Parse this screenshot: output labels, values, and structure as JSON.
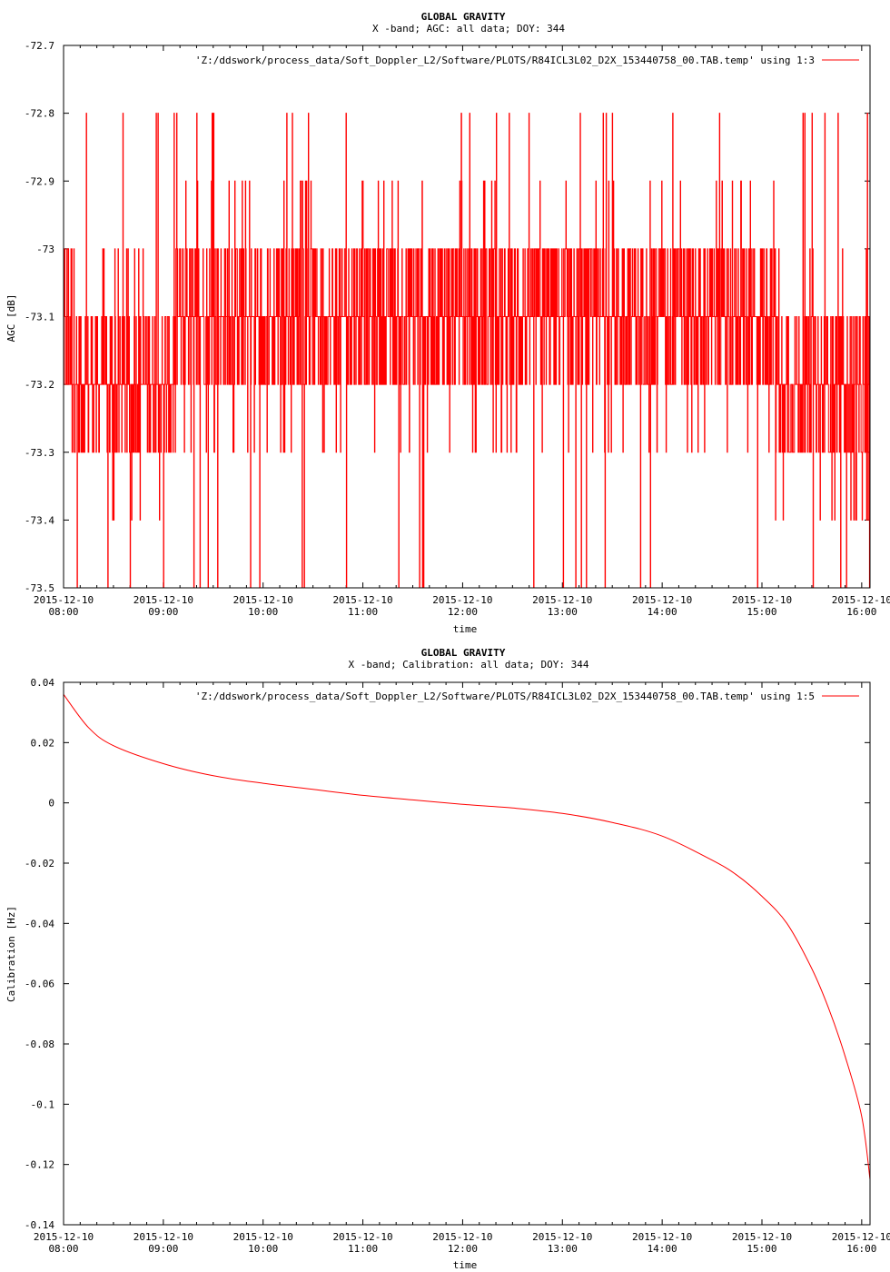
{
  "chart_data": [
    {
      "type": "line",
      "title": "GLOBAL GRAVITY",
      "subtitle": "X -band; AGC: all data; DOY: 344",
      "xlabel": "time",
      "ylabel": "AGC [dB]",
      "ylim": [
        -73.5,
        -72.7
      ],
      "yticks": [
        "-72.7",
        "-72.8",
        "-72.9",
        "-73",
        "-73.1",
        "-73.2",
        "-73.3",
        "-73.4",
        "-73.5"
      ],
      "xtick_dates": [
        "2015-12-10",
        "2015-12-10",
        "2015-12-10",
        "2015-12-10",
        "2015-12-10",
        "2015-12-10",
        "2015-12-10",
        "2015-12-10",
        "2015-12-10"
      ],
      "xtick_times": [
        "08:00",
        "09:00",
        "10:00",
        "11:00",
        "12:00",
        "13:00",
        "14:00",
        "15:00",
        "16:00"
      ],
      "xlim": [
        "2015-12-10 08:00",
        "2015-12-10 16:05"
      ],
      "grid": false,
      "legend_position": "top-right",
      "series": [
        {
          "name": "'Z:/ddswork/process_data/Soft_Doppler_L2/Software/PLOTS/R84ICL3L02_D2X_153440758_00.TAB.temp' using 1:3",
          "color": "#ff0000",
          "x": [
            "08:00",
            "08:15",
            "08:30",
            "08:45",
            "09:00",
            "09:15",
            "09:30",
            "09:45",
            "10:00",
            "10:15",
            "10:30",
            "10:45",
            "11:00",
            "11:15",
            "11:30",
            "11:45",
            "12:00",
            "12:15",
            "12:30",
            "12:45",
            "13:00",
            "13:15",
            "13:30",
            "13:45",
            "14:00",
            "14:15",
            "14:30",
            "14:45",
            "15:00",
            "15:15",
            "15:30",
            "15:45",
            "16:00"
          ],
          "band_high": [
            -73.0,
            -73.1,
            -73.1,
            -73.1,
            -73.1,
            -73.0,
            -73.0,
            -73.0,
            -73.0,
            -73.0,
            -73.0,
            -73.0,
            -73.0,
            -73.0,
            -73.0,
            -73.0,
            -73.0,
            -73.0,
            -73.0,
            -73.0,
            -73.0,
            -73.0,
            -73.0,
            -73.0,
            -73.0,
            -73.0,
            -73.0,
            -73.0,
            -73.0,
            -73.1,
            -73.1,
            -73.1,
            -73.1
          ],
          "band_low": [
            -73.3,
            -73.3,
            -73.3,
            -73.3,
            -73.3,
            -73.2,
            -73.2,
            -73.2,
            -73.2,
            -73.2,
            -73.2,
            -73.2,
            -73.2,
            -73.2,
            -73.2,
            -73.2,
            -73.2,
            -73.2,
            -73.2,
            -73.2,
            -73.2,
            -73.2,
            -73.2,
            -73.2,
            -73.2,
            -73.2,
            -73.2,
            -73.2,
            -73.2,
            -73.3,
            -73.3,
            -73.3,
            -73.4
          ],
          "max": -72.8,
          "min": -73.5
        }
      ]
    },
    {
      "type": "line",
      "title": "GLOBAL GRAVITY",
      "subtitle": "X -band; Calibration: all data; DOY: 344",
      "xlabel": "time",
      "ylabel": "Calibration [Hz]",
      "ylim": [
        -0.14,
        0.04
      ],
      "yticks": [
        "0.04",
        "0.02",
        "0",
        "-0.02",
        "-0.04",
        "-0.06",
        "-0.08",
        "-0.1",
        "-0.12",
        "-0.14"
      ],
      "xtick_dates": [
        "2015-12-10",
        "2015-12-10",
        "2015-12-10",
        "2015-12-10",
        "2015-12-10",
        "2015-12-10",
        "2015-12-10",
        "2015-12-10",
        "2015-12-10"
      ],
      "xtick_times": [
        "08:00",
        "09:00",
        "10:00",
        "11:00",
        "12:00",
        "13:00",
        "14:00",
        "15:00",
        "16:00"
      ],
      "xlim": [
        "2015-12-10 08:00",
        "2015-12-10 16:05"
      ],
      "grid": false,
      "legend_position": "top-right",
      "series": [
        {
          "name": "'Z:/ddswork/process_data/Soft_Doppler_L2/Software/PLOTS/R84ICL3L02_D2X_153440758_00.TAB.temp' using 1:5",
          "color": "#ff0000",
          "x": [
            "08:00",
            "08:15",
            "08:30",
            "09:00",
            "09:30",
            "10:00",
            "10:30",
            "11:00",
            "11:30",
            "12:00",
            "12:30",
            "13:00",
            "13:30",
            "14:00",
            "14:30",
            "14:45",
            "15:00",
            "15:15",
            "15:30",
            "15:40",
            "15:50",
            "16:00",
            "16:05"
          ],
          "values": [
            0.036,
            0.025,
            0.019,
            0.013,
            0.009,
            0.0065,
            0.0045,
            0.0025,
            0.001,
            -0.0005,
            -0.0017,
            -0.0035,
            -0.0065,
            -0.011,
            -0.019,
            -0.024,
            -0.031,
            -0.04,
            -0.055,
            -0.068,
            -0.084,
            -0.104,
            -0.125
          ]
        }
      ]
    }
  ]
}
